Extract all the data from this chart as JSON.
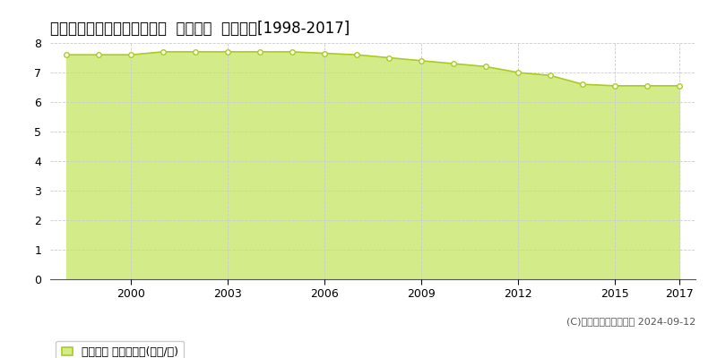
{
  "title": "北海道北見市清月町７番１５  地価公示  地価推移[1998-2017]",
  "years": [
    1998,
    1999,
    2000,
    2001,
    2002,
    2003,
    2004,
    2005,
    2006,
    2007,
    2008,
    2009,
    2010,
    2011,
    2012,
    2013,
    2014,
    2015,
    2016,
    2017
  ],
  "values": [
    7.6,
    7.6,
    7.6,
    7.7,
    7.7,
    7.7,
    7.7,
    7.7,
    7.65,
    7.6,
    7.5,
    7.4,
    7.3,
    7.2,
    7.0,
    6.9,
    6.6,
    6.55,
    6.55,
    6.55
  ],
  "line_color": "#aacc22",
  "fill_color": "#d4eb8a",
  "marker_facecolor": "#ffffff",
  "marker_edgecolor": "#aacc22",
  "background_color": "#ffffff",
  "plot_bg_color": "#ffffff",
  "grid_color": "#cccccc",
  "ylim": [
    0,
    8
  ],
  "yticks": [
    0,
    1,
    2,
    3,
    4,
    5,
    6,
    7,
    8
  ],
  "xtick_years": [
    2000,
    2003,
    2006,
    2009,
    2012,
    2015,
    2017
  ],
  "xlim_left": 1997.5,
  "xlim_right": 2017.5,
  "legend_label": "地価公示 平均坪単価(万円/坪)",
  "copyright_text": "(C)土地価格ドットコム 2024-09-12",
  "title_fontsize": 12,
  "tick_fontsize": 9,
  "legend_fontsize": 9,
  "copyright_fontsize": 8
}
